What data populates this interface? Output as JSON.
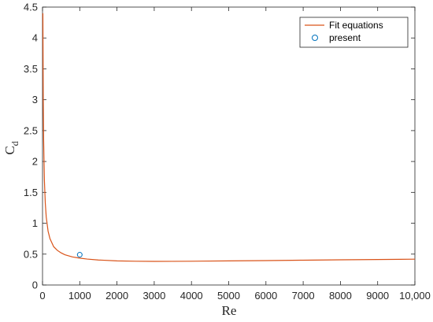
{
  "chart_data": {
    "type": "line",
    "xlabel": "Re",
    "ylabel": {
      "main": "C",
      "sub": "d"
    },
    "xlim": [
      0,
      10000
    ],
    "ylim": [
      0,
      4.5
    ],
    "xticks": [
      0,
      1000,
      2000,
      3000,
      4000,
      5000,
      6000,
      7000,
      8000,
      9000,
      10000
    ],
    "xtick_labels": [
      "0",
      "1000",
      "2000",
      "3000",
      "4000",
      "5000",
      "6000",
      "7000",
      "8000",
      "9000",
      "10,000"
    ],
    "yticks": [
      0,
      0.5,
      1,
      1.5,
      2,
      2.5,
      3,
      3.5,
      4,
      4.5
    ],
    "ytick_labels": [
      "0",
      "0.5",
      "1",
      "1.5",
      "2",
      "2.5",
      "3",
      "3.5",
      "4",
      "4.5"
    ],
    "grid": false,
    "legend_position": "top-right",
    "series": [
      {
        "name": "Fit equations",
        "kind": "line",
        "color": "#d95319",
        "x": [
          10,
          20,
          30,
          50,
          75,
          100,
          150,
          200,
          300,
          400,
          500,
          600,
          800,
          1000,
          1200,
          1500,
          2000,
          2500,
          3000,
          3500,
          4000,
          5000,
          6000,
          7000,
          8000,
          9000,
          10000
        ],
        "y": [
          4.4,
          3.0,
          2.35,
          1.7,
          1.32,
          1.1,
          0.87,
          0.75,
          0.62,
          0.56,
          0.52,
          0.49,
          0.455,
          0.435,
          0.42,
          0.405,
          0.39,
          0.385,
          0.382,
          0.383,
          0.385,
          0.39,
          0.395,
          0.402,
          0.408,
          0.413,
          0.418
        ]
      },
      {
        "name": "present",
        "kind": "scatter",
        "marker": "circle",
        "color": "#0072bd",
        "x": [
          1000
        ],
        "y": [
          0.49
        ]
      }
    ]
  }
}
